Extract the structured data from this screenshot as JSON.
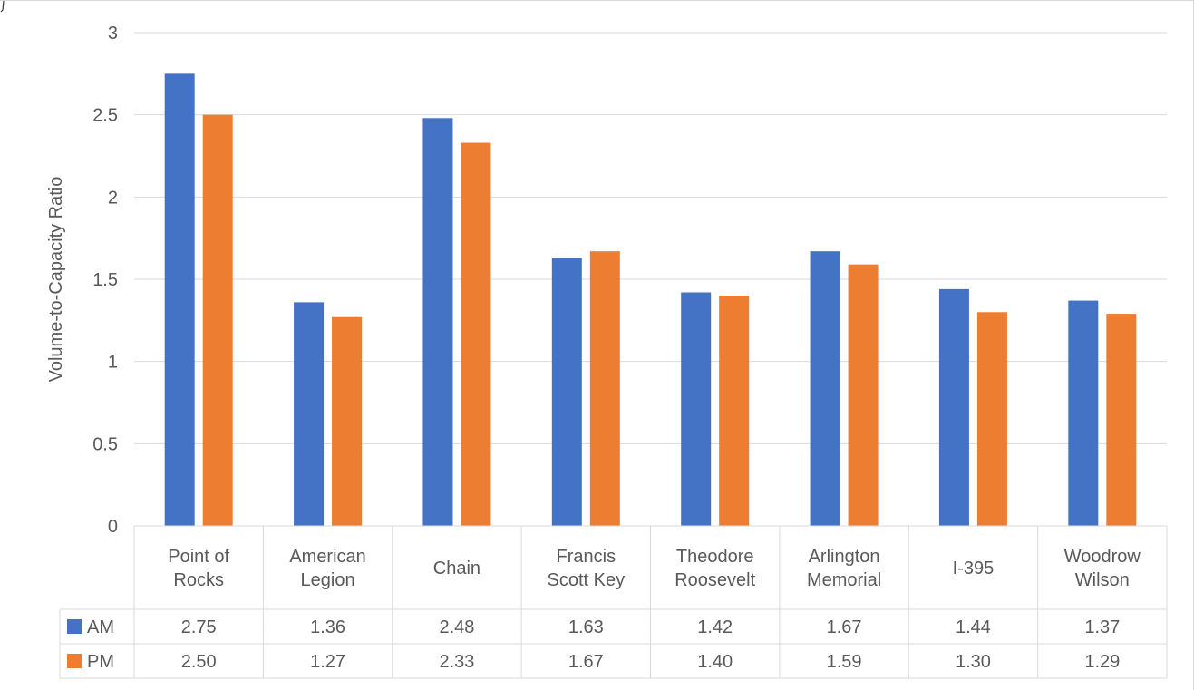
{
  "chart_data": {
    "type": "bar",
    "title": "",
    "xlabel": "",
    "ylabel": "Volume-to-Capacity Ratio",
    "ylim": [
      0,
      3
    ],
    "yticks": [
      "0",
      "0.5",
      "1",
      "1.5",
      "2",
      "2.5",
      "3"
    ],
    "grid": true,
    "legend": "data-table",
    "categories": [
      [
        "Point of",
        "Rocks"
      ],
      [
        "American",
        "Legion"
      ],
      [
        "Chain"
      ],
      [
        "Francis",
        "Scott Key"
      ],
      [
        "Theodore",
        "Roosevelt"
      ],
      [
        "Arlington",
        "Memorial"
      ],
      [
        "I-395"
      ],
      [
        "Woodrow",
        "Wilson"
      ]
    ],
    "series": [
      {
        "name": "AM",
        "color": "#4472c4",
        "values": [
          2.75,
          1.36,
          2.48,
          1.63,
          1.42,
          1.67,
          1.44,
          1.37
        ],
        "labels": [
          "2.75",
          "1.36",
          "2.48",
          "1.63",
          "1.42",
          "1.67",
          "1.44",
          "1.37"
        ]
      },
      {
        "name": "PM",
        "color": "#ed7d31",
        "values": [
          2.5,
          1.27,
          2.33,
          1.67,
          1.4,
          1.59,
          1.3,
          1.29
        ],
        "labels": [
          "2.50",
          "1.27",
          "2.33",
          "1.67",
          "1.40",
          "1.59",
          "1.30",
          "1.29"
        ]
      }
    ]
  }
}
